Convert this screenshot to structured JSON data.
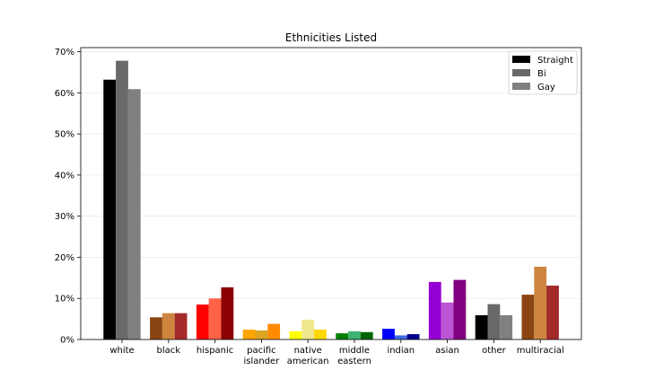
{
  "chart_data": {
    "type": "bar",
    "title": "Ethnicities Listed",
    "xlabel": "",
    "ylabel": "",
    "ylim": [
      0,
      71
    ],
    "y_ticks": [
      0,
      10,
      20,
      30,
      40,
      50,
      60,
      70
    ],
    "y_tick_format": "%",
    "grid": "horizontal, light",
    "legend_position": "top-right",
    "categories": [
      [
        "white"
      ],
      [
        "black"
      ],
      [
        "hispanic"
      ],
      [
        "pacific",
        "islander"
      ],
      [
        "native",
        "american"
      ],
      [
        "middle",
        "eastern"
      ],
      [
        "indian"
      ],
      [
        "asian"
      ],
      [
        "other"
      ],
      [
        "multiracial"
      ]
    ],
    "series": [
      {
        "name": "Straight",
        "legend_color": "#000000",
        "values": [
          63.2,
          5.4,
          8.5,
          2.4,
          2.0,
          1.5,
          2.6,
          14.0,
          5.9,
          10.9
        ],
        "colors": [
          "#000000",
          "#8b4513",
          "#ff0000",
          "#ffa500",
          "#ffff00",
          "#008000",
          "#0000ff",
          "#9400d3",
          "#000000",
          "#8b4513"
        ]
      },
      {
        "name": "Bi",
        "legend_color": "#696969",
        "values": [
          67.8,
          6.4,
          10.0,
          2.2,
          4.8,
          2.0,
          1.0,
          9.0,
          8.6,
          17.7
        ],
        "colors": [
          "#696969",
          "#cd853f",
          "#ff6347",
          "#daa520",
          "#f0e68c",
          "#3cb371",
          "#4169e1",
          "#ba55d3",
          "#696969",
          "#cd853f"
        ]
      },
      {
        "name": "Gay",
        "legend_color": "#808080",
        "values": [
          60.9,
          6.4,
          12.7,
          3.8,
          2.4,
          1.8,
          1.3,
          14.5,
          5.9,
          13.1
        ],
        "colors": [
          "#808080",
          "#a52a2a",
          "#8b0000",
          "#ff8c00",
          "#ffd700",
          "#006400",
          "#00008b",
          "#800080",
          "#808080",
          "#a52a2a"
        ]
      }
    ]
  }
}
